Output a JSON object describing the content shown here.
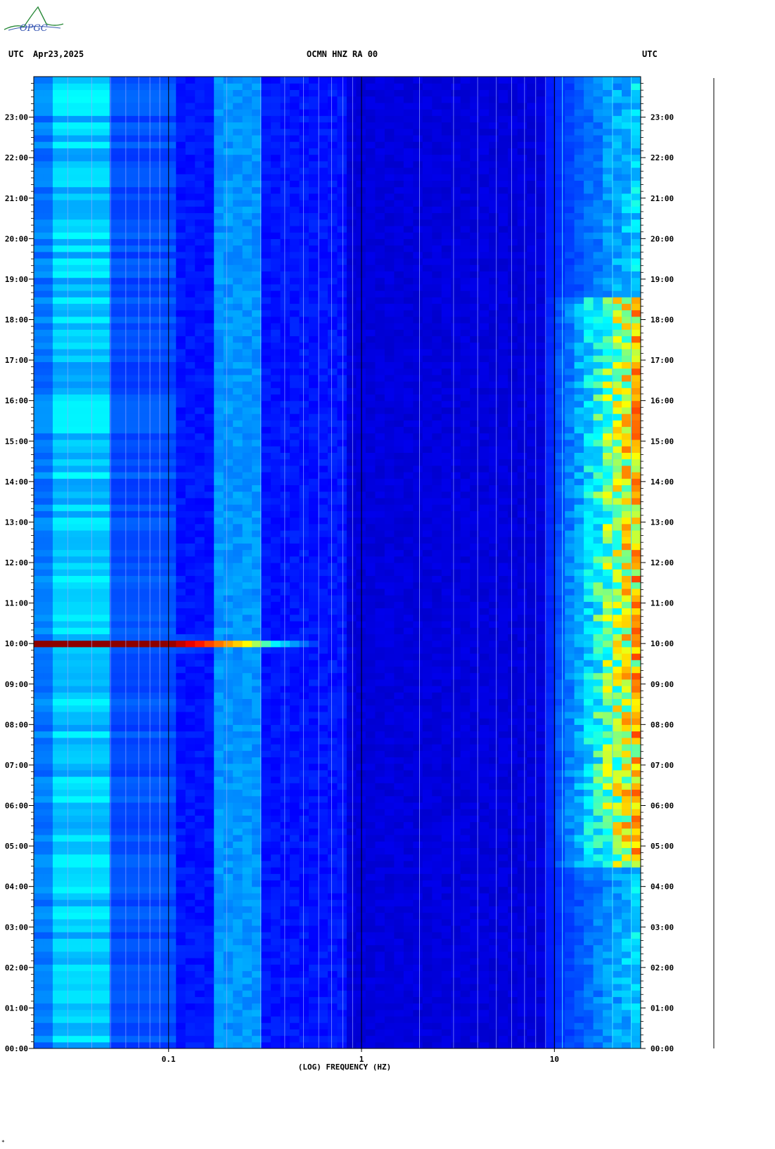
{
  "header": {
    "left_label": "UTC",
    "date": "Apr23,2025",
    "station": "OCMN HNZ RA 00",
    "right_label": "UTC"
  },
  "logo": {
    "text": "OPGC"
  },
  "footer_mark": "*",
  "chart_data": {
    "type": "heatmap",
    "title": "OCMN HNZ RA 00",
    "xlabel": "(LOG) FREQUENCY (HZ)",
    "ylabel": "",
    "x_scale": "log",
    "xlim": [
      0.02,
      28
    ],
    "x_ticks": [
      {
        "value": 0.1,
        "label": "0.1"
      },
      {
        "value": 1,
        "label": "1"
      },
      {
        "value": 10,
        "label": "10"
      }
    ],
    "y_unit": "hours UTC",
    "ylim": [
      0,
      24
    ],
    "y_ticks": [
      {
        "value": 0,
        "label": "00:00"
      },
      {
        "value": 1,
        "label": "01:00"
      },
      {
        "value": 2,
        "label": "02:00"
      },
      {
        "value": 3,
        "label": "03:00"
      },
      {
        "value": 4,
        "label": "04:00"
      },
      {
        "value": 5,
        "label": "05:00"
      },
      {
        "value": 6,
        "label": "06:00"
      },
      {
        "value": 7,
        "label": "07:00"
      },
      {
        "value": 8,
        "label": "08:00"
      },
      {
        "value": 9,
        "label": "09:00"
      },
      {
        "value": 10,
        "label": "10:00"
      },
      {
        "value": 11,
        "label": "11:00"
      },
      {
        "value": 12,
        "label": "12:00"
      },
      {
        "value": 13,
        "label": "13:00"
      },
      {
        "value": 14,
        "label": "14:00"
      },
      {
        "value": 15,
        "label": "15:00"
      },
      {
        "value": 16,
        "label": "16:00"
      },
      {
        "value": 17,
        "label": "17:00"
      },
      {
        "value": 18,
        "label": "18:00"
      },
      {
        "value": 19,
        "label": "19:00"
      },
      {
        "value": 20,
        "label": "20:00"
      },
      {
        "value": 21,
        "label": "21:00"
      },
      {
        "value": 22,
        "label": "22:00"
      },
      {
        "value": 23,
        "label": "23:00"
      }
    ],
    "colormap": [
      "#00008c",
      "#0000ff",
      "#0080ff",
      "#00ffff",
      "#ffff00",
      "#ff8000",
      "#ff0000",
      "#8c0000"
    ],
    "background_color": "#0a14c8",
    "features": [
      {
        "kind": "low_freq_band",
        "x_range": [
          0.024,
          0.05
        ],
        "level": 0.35
      },
      {
        "kind": "microseism_band",
        "x_range": [
          0.17,
          0.3
        ],
        "level": 0.28
      },
      {
        "kind": "earthquake",
        "time_hours": 10.0,
        "x_range": [
          0.02,
          0.9
        ],
        "peak_level": 1.0
      },
      {
        "kind": "cultural_noise",
        "x_range": [
          9,
          28
        ],
        "time_range": [
          4.5,
          18.5
        ],
        "level": 0.55
      },
      {
        "kind": "high_freq_lines",
        "x_values": [
          11,
          20,
          25
        ]
      }
    ],
    "grid": true,
    "grid_lines_x": [
      0.03,
      0.04,
      0.05,
      0.06,
      0.07,
      0.08,
      0.09,
      0.2,
      0.3,
      0.4,
      0.5,
      0.6,
      0.7,
      0.8,
      0.9,
      2,
      3,
      4,
      5,
      6,
      7,
      8,
      9,
      20
    ],
    "legend": "none"
  }
}
